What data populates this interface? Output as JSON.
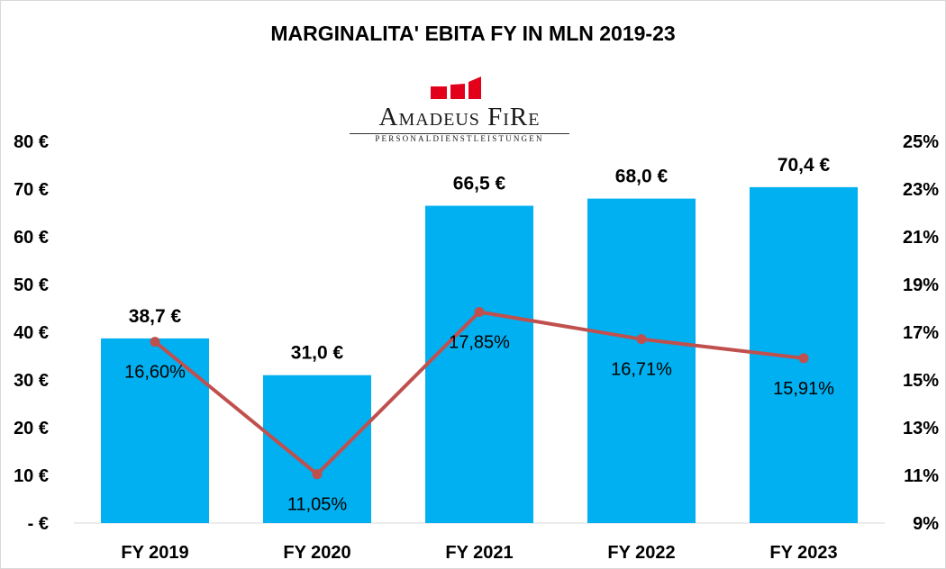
{
  "logo": {
    "name": "Amadeus FiRe",
    "tagline": "PERSONALDIENSTLEISTUNGEN",
    "accent_color": "#e2001a"
  },
  "chart_data": {
    "type": "bar",
    "title": "MARGINALITA' EBITA FY IN MLN 2019-23",
    "categories": [
      "FY 2019",
      "FY 2020",
      "FY 2021",
      "FY 2022",
      "FY 2023"
    ],
    "series": [
      {
        "type": "bar",
        "axis": "left",
        "color": "#00b0f0",
        "values": [
          38.7,
          31.0,
          66.5,
          68.0,
          70.4
        ],
        "labels": [
          "38,7 €",
          "31,0 €",
          "66,5 €",
          "68,0 €",
          "70,4 €"
        ]
      },
      {
        "type": "line",
        "axis": "right",
        "color": "#c0504d",
        "values": [
          16.6,
          11.05,
          17.85,
          16.71,
          15.91
        ],
        "labels": [
          "16,60%",
          "11,05%",
          "17,85%",
          "16,71%",
          "15,91%"
        ]
      }
    ],
    "y_left": {
      "ylim": [
        0,
        80
      ],
      "ticks": [
        0,
        10,
        20,
        30,
        40,
        50,
        60,
        70,
        80
      ],
      "tick_labels": [
        "- €",
        "10 €",
        "20 €",
        "30 €",
        "40 €",
        "50 €",
        "60 €",
        "70 €",
        "80 €"
      ]
    },
    "y_right": {
      "ylim": [
        9,
        25
      ],
      "ticks": [
        9,
        11,
        13,
        15,
        17,
        19,
        21,
        23,
        25
      ],
      "tick_labels": [
        "9%",
        "11%",
        "13%",
        "15%",
        "17%",
        "19%",
        "21%",
        "23%",
        "25%"
      ]
    },
    "grid": false,
    "legend": "none"
  }
}
